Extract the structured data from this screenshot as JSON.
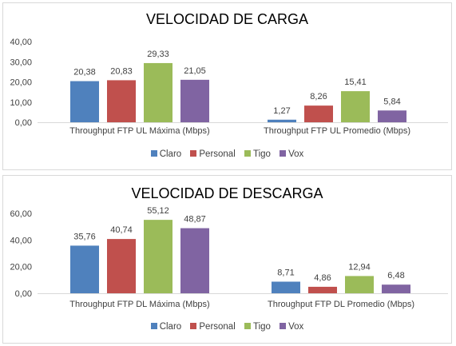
{
  "chart_data": [
    {
      "type": "bar",
      "title": "VELOCIDAD DE CARGA",
      "categories": [
        "Throughput FTP UL Máxima (Mbps)",
        "Throughput FTP UL Promedio (Mbps)"
      ],
      "series": [
        {
          "name": "Claro",
          "color": "#4f81bd",
          "values": [
            20.38,
            1.27
          ],
          "labels": [
            "20,38",
            "1,27"
          ]
        },
        {
          "name": "Personal",
          "color": "#c0504d",
          "values": [
            20.83,
            8.26
          ],
          "labels": [
            "20,83",
            "8,26"
          ]
        },
        {
          "name": "Tigo",
          "color": "#9bbb59",
          "values": [
            29.33,
            15.41
          ],
          "labels": [
            "29,33",
            "15,41"
          ]
        },
        {
          "name": "Vox",
          "color": "#8064a2",
          "values": [
            21.05,
            5.84
          ],
          "labels": [
            "21,05",
            "5,84"
          ]
        }
      ],
      "ylim": [
        0,
        40
      ],
      "yticks": [
        0,
        10,
        20,
        30,
        40
      ],
      "ytick_labels": [
        "0,00",
        "10,00",
        "20,00",
        "30,00",
        "40,00"
      ],
      "grid": false,
      "legend": "bottom"
    },
    {
      "type": "bar",
      "title": "VELOCIDAD DE DESCARGA",
      "categories": [
        "Throughput FTP DL Máxima (Mbps)",
        "Throughput FTP DL Promedio (Mbps)"
      ],
      "series": [
        {
          "name": "Claro",
          "color": "#4f81bd",
          "values": [
            35.76,
            8.71
          ],
          "labels": [
            "35,76",
            "8,71"
          ]
        },
        {
          "name": "Personal",
          "color": "#c0504d",
          "values": [
            40.74,
            4.86
          ],
          "labels": [
            "40,74",
            "4,86"
          ]
        },
        {
          "name": "Tigo",
          "color": "#9bbb59",
          "values": [
            55.12,
            12.94
          ],
          "labels": [
            "55,12",
            "12,94"
          ]
        },
        {
          "name": "Vox",
          "color": "#8064a2",
          "values": [
            48.87,
            6.48
          ],
          "labels": [
            "48,87",
            "6,48"
          ]
        }
      ],
      "ylim": [
        0,
        60
      ],
      "yticks": [
        0,
        20,
        40,
        60
      ],
      "ytick_labels": [
        "0,00",
        "20,00",
        "40,00",
        "60,00"
      ],
      "grid": false,
      "legend": "bottom"
    }
  ]
}
